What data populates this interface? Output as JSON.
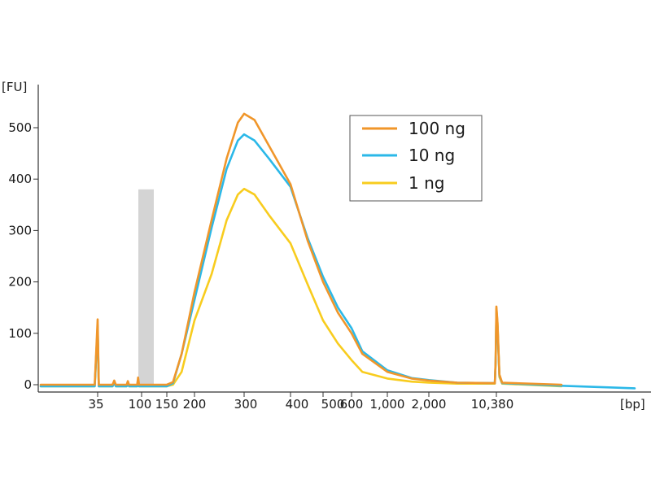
{
  "chart_data": {
    "type": "line",
    "ylabel": "[FU]",
    "xlabel": "[bp]",
    "yticks": [
      "0",
      "100",
      "200",
      "300",
      "400",
      "500"
    ],
    "ylim": [
      -10,
      580
    ],
    "xticks": [
      "35",
      "100",
      "150",
      "200",
      "300",
      "400",
      "500",
      "600",
      "1,000",
      "2,000",
      "10,380"
    ],
    "x_axis_scale": "nonlinear (electropherogram size scale)",
    "grid": false,
    "legend_position": "top-right",
    "shaded_region": {
      "color": "#d4d4d4",
      "x_range_bp": [
        100,
        120
      ],
      "y_range": [
        0,
        380
      ]
    },
    "series": [
      {
        "name": "100 ng",
        "color": "#f0962a",
        "points": [
          [
            20,
            0
          ],
          [
            34,
            0
          ],
          [
            35,
            127
          ],
          [
            36,
            0
          ],
          [
            50,
            0
          ],
          [
            52,
            8
          ],
          [
            54,
            0
          ],
          [
            70,
            0
          ],
          [
            72,
            7
          ],
          [
            74,
            0
          ],
          [
            90,
            0
          ],
          [
            92,
            14
          ],
          [
            94,
            0
          ],
          [
            100,
            0
          ],
          [
            150,
            0
          ],
          [
            160,
            5
          ],
          [
            175,
            60
          ],
          [
            200,
            180
          ],
          [
            230,
            320
          ],
          [
            260,
            440
          ],
          [
            285,
            510
          ],
          [
            300,
            527
          ],
          [
            320,
            515
          ],
          [
            350,
            465
          ],
          [
            400,
            390
          ],
          [
            450,
            280
          ],
          [
            500,
            200
          ],
          [
            550,
            140
          ],
          [
            600,
            100
          ],
          [
            700,
            60
          ],
          [
            1000,
            25
          ],
          [
            1500,
            12
          ],
          [
            2000,
            8
          ],
          [
            4000,
            4
          ],
          [
            10000,
            3
          ],
          [
            10200,
            50
          ],
          [
            10380,
            152
          ],
          [
            10500,
            120
          ],
          [
            10700,
            20
          ],
          [
            11000,
            4
          ],
          [
            20000,
            0
          ]
        ]
      },
      {
        "name": "10 ng",
        "color": "#2bb8e8",
        "points": [
          [
            20,
            -3
          ],
          [
            34,
            -3
          ],
          [
            35,
            115
          ],
          [
            36,
            -3
          ],
          [
            50,
            -3
          ],
          [
            52,
            4
          ],
          [
            54,
            -3
          ],
          [
            70,
            -3
          ],
          [
            72,
            4
          ],
          [
            74,
            -3
          ],
          [
            90,
            -3
          ],
          [
            92,
            10
          ],
          [
            94,
            -3
          ],
          [
            100,
            -3
          ],
          [
            150,
            -3
          ],
          [
            160,
            3
          ],
          [
            175,
            60
          ],
          [
            200,
            165
          ],
          [
            230,
            305
          ],
          [
            260,
            420
          ],
          [
            285,
            475
          ],
          [
            300,
            487
          ],
          [
            320,
            475
          ],
          [
            350,
            440
          ],
          [
            400,
            385
          ],
          [
            450,
            285
          ],
          [
            500,
            210
          ],
          [
            550,
            150
          ],
          [
            600,
            110
          ],
          [
            700,
            65
          ],
          [
            1000,
            28
          ],
          [
            1500,
            13
          ],
          [
            2000,
            9
          ],
          [
            4000,
            4
          ],
          [
            10000,
            3
          ],
          [
            10200,
            45
          ],
          [
            10380,
            140
          ],
          [
            10500,
            112
          ],
          [
            10700,
            18
          ],
          [
            11000,
            3
          ],
          [
            20000,
            -2
          ],
          [
            40000,
            -7
          ]
        ]
      },
      {
        "name": "1 ng",
        "color": "#f8cc1e",
        "points": [
          [
            20,
            -3
          ],
          [
            34,
            -3
          ],
          [
            35,
            110
          ],
          [
            36,
            -3
          ],
          [
            50,
            -3
          ],
          [
            52,
            4
          ],
          [
            54,
            -3
          ],
          [
            70,
            -3
          ],
          [
            72,
            4
          ],
          [
            74,
            -3
          ],
          [
            90,
            -3
          ],
          [
            92,
            8
          ],
          [
            94,
            -3
          ],
          [
            100,
            -3
          ],
          [
            150,
            -3
          ],
          [
            160,
            0
          ],
          [
            175,
            25
          ],
          [
            200,
            125
          ],
          [
            230,
            215
          ],
          [
            260,
            320
          ],
          [
            285,
            370
          ],
          [
            300,
            381
          ],
          [
            320,
            370
          ],
          [
            350,
            330
          ],
          [
            400,
            275
          ],
          [
            450,
            195
          ],
          [
            500,
            125
          ],
          [
            550,
            80
          ],
          [
            600,
            48
          ],
          [
            700,
            25
          ],
          [
            1000,
            12
          ],
          [
            1500,
            6
          ],
          [
            2000,
            4
          ],
          [
            4000,
            2
          ],
          [
            10000,
            2
          ],
          [
            10200,
            45
          ],
          [
            10380,
            148
          ],
          [
            10500,
            118
          ],
          [
            10700,
            15
          ],
          [
            11000,
            2
          ],
          [
            20000,
            -3
          ]
        ]
      }
    ]
  }
}
